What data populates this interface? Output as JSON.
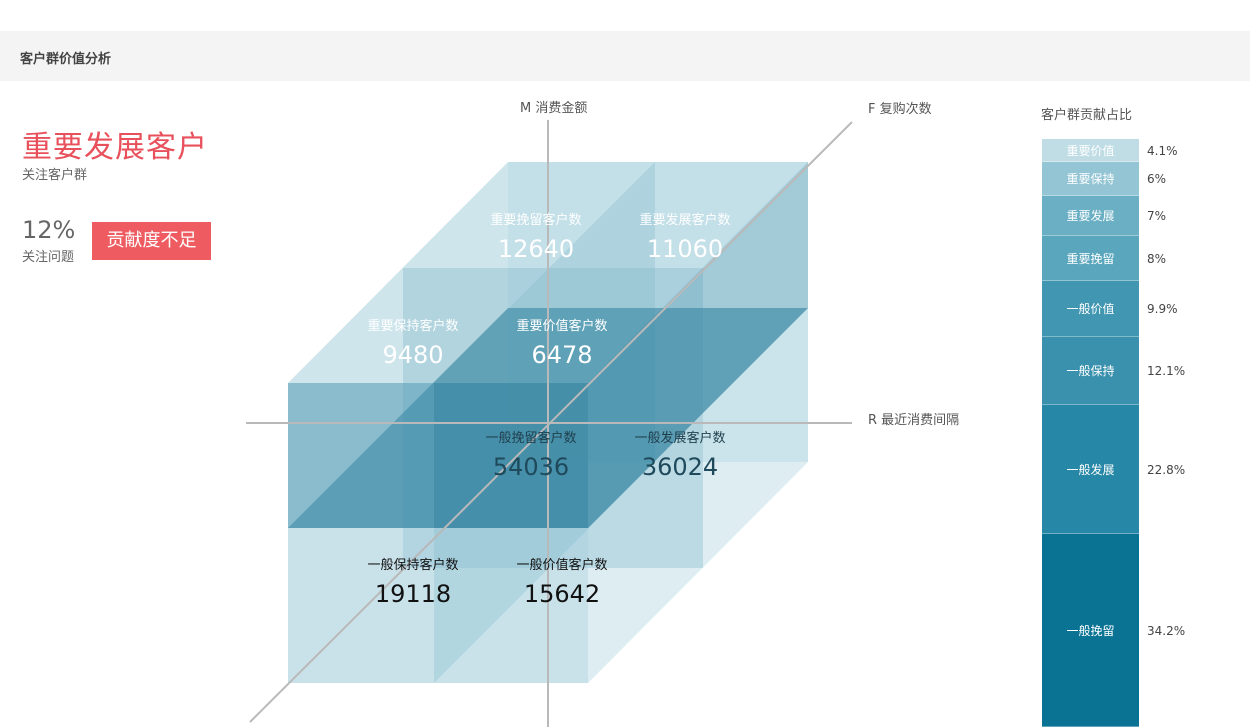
{
  "header": {
    "title": "客户群价值分析"
  },
  "focus": {
    "title": "重要发展客户",
    "subtitle": "关注客户群",
    "problem_pct": "12%",
    "problem_label": "关注问题",
    "badge": "贡献度不足"
  },
  "axes": {
    "m": "M 消费金额",
    "f": "F 复购次数",
    "r": "R 最近消费间隔"
  },
  "cube_cells": [
    {
      "label": "重要挽留客户数",
      "value": "12640"
    },
    {
      "label": "重要发展客户数",
      "value": "11060"
    },
    {
      "label": "重要保持客户数",
      "value": "9480"
    },
    {
      "label": "重要价值客户数",
      "value": "6478"
    },
    {
      "label": "一般挽留客户数",
      "value": "54036"
    },
    {
      "label": "一般发展客户数",
      "value": "36024"
    },
    {
      "label": "一般保持客户数",
      "value": "19118"
    },
    {
      "label": "一般价值客户数",
      "value": "15642"
    }
  ],
  "share": {
    "title": "客户群贡献占比",
    "segments": [
      {
        "label": "重要价值",
        "pct": "4.1%",
        "value": 4.1,
        "color": "#c0dde6"
      },
      {
        "label": "重要保持",
        "pct": "6%",
        "value": 6,
        "color": "#93c5d4"
      },
      {
        "label": "重要发展",
        "pct": "7%",
        "value": 7,
        "color": "#6aafc4"
      },
      {
        "label": "重要挽留",
        "pct": "8%",
        "value": 8,
        "color": "#5aa6bd"
      },
      {
        "label": "一般价值",
        "pct": "9.9%",
        "value": 9.9,
        "color": "#4196b1"
      },
      {
        "label": "一般保持",
        "pct": "12.1%",
        "value": 12.1,
        "color": "#3a91ad"
      },
      {
        "label": "一般发展",
        "pct": "22.8%",
        "value": 22.8,
        "color": "#2787a6"
      },
      {
        "label": "一般挽留",
        "pct": "34.2%",
        "value": 34.2,
        "color": "#0a7394"
      }
    ]
  }
}
